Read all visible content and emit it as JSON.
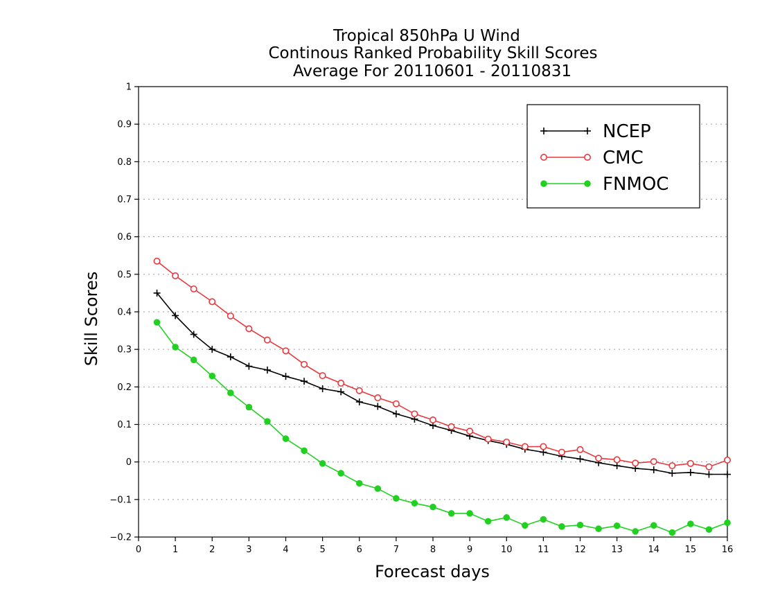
{
  "chart_data": {
    "type": "line",
    "title": [
      "Tropical 850hPa U Wind",
      "Continous Ranked Probability Skill Scores",
      "Average For 20110601 - 20110831"
    ],
    "xlabel": "Forecast days",
    "ylabel": "Skill Scores",
    "xlim": [
      0,
      16
    ],
    "ylim": [
      -0.2,
      1
    ],
    "xticks": [
      0,
      1,
      2,
      3,
      4,
      5,
      6,
      7,
      8,
      9,
      10,
      11,
      12,
      13,
      14,
      15,
      16
    ],
    "yticks": [
      -0.2,
      -0.1,
      0,
      0.1,
      0.2,
      0.3,
      0.4,
      0.5,
      0.6,
      0.7,
      0.8,
      0.9,
      1
    ],
    "ytick_labels": [
      "−0.2",
      "−0.1",
      "0",
      "0.1",
      "0.2",
      "0.3",
      "0.4",
      "0.5",
      "0.6",
      "0.7",
      "0.8",
      "0.9",
      "1"
    ],
    "grid": "horizontal-dotted",
    "legend_position": "top-right",
    "x": [
      0.5,
      1,
      1.5,
      2,
      2.5,
      3,
      3.5,
      4,
      4.5,
      5,
      5.5,
      6,
      6.5,
      7,
      7.5,
      8,
      8.5,
      9,
      9.5,
      10,
      10.5,
      11,
      11.5,
      12,
      12.5,
      13,
      13.5,
      14,
      14.5,
      15,
      15.5,
      16
    ],
    "series": [
      {
        "name": "NCEP",
        "color": "#000000",
        "marker": "plus",
        "values": [
          0.45,
          0.39,
          0.34,
          0.3,
          0.28,
          0.255,
          0.245,
          0.228,
          0.215,
          0.195,
          0.187,
          0.16,
          0.148,
          0.128,
          0.114,
          0.097,
          0.084,
          0.069,
          0.057,
          0.047,
          0.034,
          0.026,
          0.015,
          0.008,
          -0.002,
          -0.01,
          -0.017,
          -0.021,
          -0.03,
          -0.028,
          -0.033,
          -0.033
        ]
      },
      {
        "name": "CMC",
        "color": "#e8383d",
        "marker": "open-circle",
        "values": [
          0.535,
          0.496,
          0.461,
          0.427,
          0.389,
          0.355,
          0.325,
          0.296,
          0.26,
          0.23,
          0.21,
          0.19,
          0.171,
          0.155,
          0.128,
          0.112,
          0.094,
          0.082,
          0.061,
          0.053,
          0.041,
          0.041,
          0.026,
          0.033,
          0.01,
          0.006,
          -0.003,
          0.001,
          -0.01,
          -0.004,
          -0.013,
          0.005
        ]
      },
      {
        "name": "FNMOC",
        "color": "#22d022",
        "marker": "filled-circle",
        "values": [
          0.372,
          0.306,
          0.272,
          0.229,
          0.184,
          0.146,
          0.108,
          0.062,
          0.03,
          -0.004,
          -0.03,
          -0.057,
          -0.071,
          -0.097,
          -0.11,
          -0.12,
          -0.137,
          -0.137,
          -0.158,
          -0.148,
          -0.169,
          -0.153,
          -0.172,
          -0.168,
          -0.178,
          -0.17,
          -0.185,
          -0.169,
          -0.188,
          -0.165,
          -0.18,
          -0.162
        ]
      }
    ]
  }
}
